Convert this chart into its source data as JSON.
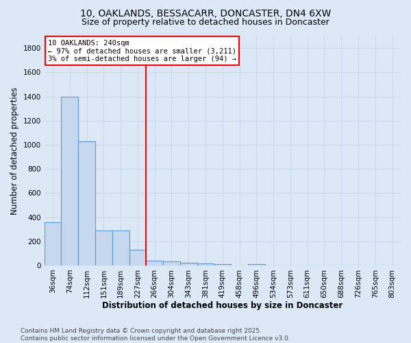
{
  "title_line1": "10, OAKLANDS, BESSACARR, DONCASTER, DN4 6XW",
  "title_line2": "Size of property relative to detached houses in Doncaster",
  "xlabel": "Distribution of detached houses by size in Doncaster",
  "ylabel": "Number of detached properties",
  "categories": [
    "36sqm",
    "74sqm",
    "112sqm",
    "151sqm",
    "189sqm",
    "227sqm",
    "266sqm",
    "304sqm",
    "343sqm",
    "381sqm",
    "419sqm",
    "458sqm",
    "496sqm",
    "534sqm",
    "573sqm",
    "611sqm",
    "650sqm",
    "688sqm",
    "726sqm",
    "765sqm",
    "803sqm"
  ],
  "values": [
    360,
    1400,
    1030,
    290,
    290,
    130,
    40,
    35,
    25,
    15,
    10,
    0,
    10,
    0,
    0,
    0,
    0,
    0,
    0,
    0,
    0
  ],
  "bar_color": "#c5d8ee",
  "bar_edge_color": "#5b9bd5",
  "background_color": "#dce8f5",
  "grid_color": "#c8d8ec",
  "vline_color": "red",
  "annotation_text": "10 OAKLANDS: 240sqm\n← 97% of detached houses are smaller (3,211)\n3% of semi-detached houses are larger (94) →",
  "annotation_box_color": "white",
  "annotation_box_edge": "red",
  "ylim": [
    0,
    1900
  ],
  "yticks": [
    0,
    200,
    400,
    600,
    800,
    1000,
    1200,
    1400,
    1600,
    1800
  ],
  "footer": "Contains HM Land Registry data © Crown copyright and database right 2025.\nContains public sector information licensed under the Open Government Licence v3.0.",
  "title_fontsize": 10,
  "subtitle_fontsize": 9,
  "axis_label_fontsize": 8.5,
  "tick_fontsize": 7.5,
  "footer_fontsize": 6.5,
  "annotation_fontsize": 7.5,
  "vline_x_index": 5.5
}
